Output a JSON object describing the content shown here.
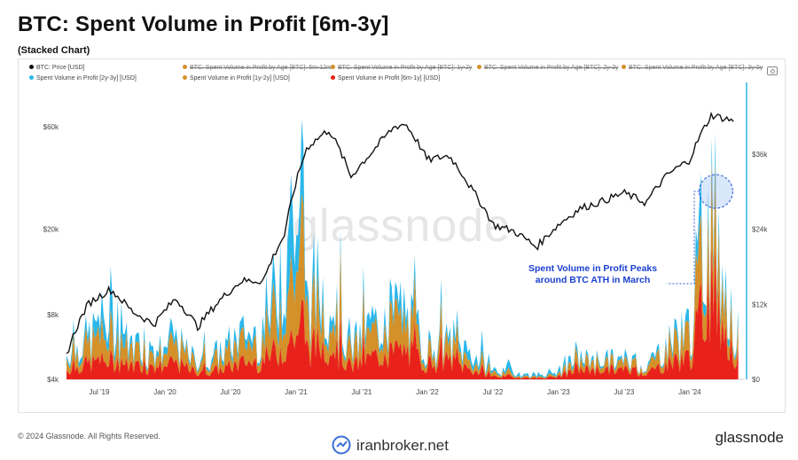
{
  "header": {
    "title": "BTC: Spent Volume in Profit [6m-3y]",
    "subtitle": "(Stacked Chart)"
  },
  "legend": {
    "items": [
      {
        "label": "BTC: Price [USD]",
        "color": "#111111",
        "struck": false
      },
      {
        "label": "BTC: Spent Volume in Profit by Age [BTC]: 6m-12m",
        "color": "#d4912a",
        "struck": true
      },
      {
        "label": "BTC: Spent Volume in Profit by Age [BTC]: 1y-2y",
        "color": "#d4912a",
        "struck": true
      },
      {
        "label": "BTC: Spent Volume in Profit by Age [BTC]: 2y-3y",
        "color": "#d4912a",
        "struck": true
      },
      {
        "label": "BTC: Spent Volume in Profit by Age [BTC]: 3y-5y",
        "color": "#d4912a",
        "struck": true
      },
      {
        "label": "Spent Volume in Profit [2y-3y] [USD]",
        "color": "#2ab7ea",
        "struck": false
      },
      {
        "label": "Spent Volume in Profit [1y-2y] [USD]",
        "color": "#d4912a",
        "struck": false
      },
      {
        "label": "Spent Volume in Profit [6m-1y] [USD]",
        "color": "#e8221b",
        "struck": false
      }
    ],
    "camera_icon": "camera-icon"
  },
  "watermark": "glassnode",
  "annotation": {
    "line1": "Spent Volume in Profit Peaks",
    "line2": "around BTC ATH in March"
  },
  "footer": {
    "copyright": "© 2024 Glassnode. All Rights Reserved.",
    "source": "iranbroker.net",
    "brand": "glassnode"
  },
  "colors": {
    "price": "#111111",
    "usd_2y3y": "#2ab7ea",
    "usd_1y2y": "#d4912a",
    "usd_6m1y": "#e8221b",
    "annotation": "#1a3fd0"
  },
  "chart_data": {
    "type": "area",
    "title": "BTC: Spent Volume in Profit [6m-3y]",
    "subtitle": "(Stacked Chart)",
    "x_ticks": [
      "Jul '19",
      "Jan '20",
      "Jul '20",
      "Jan '21",
      "Jul '21",
      "Jan '22",
      "Jul '22",
      "Jan '23",
      "Jul '23",
      "Jan '24"
    ],
    "y_left": {
      "scale": "log",
      "ticks": [
        "$4k",
        "$8k",
        "$20k",
        "$60k"
      ],
      "label": ""
    },
    "y_right": {
      "scale": "linear",
      "ticks": [
        "$0",
        "$12k",
        "$24k",
        "$36k"
      ],
      "label": ""
    },
    "x": [
      "2019-04",
      "2019-06",
      "2019-08",
      "2019-10",
      "2019-12",
      "2020-02",
      "2020-04",
      "2020-06",
      "2020-08",
      "2020-10",
      "2020-12",
      "2021-01",
      "2021-02",
      "2021-04",
      "2021-06",
      "2021-08",
      "2021-10",
      "2021-11",
      "2022-01",
      "2022-03",
      "2022-05",
      "2022-07",
      "2022-09",
      "2022-11",
      "2023-01",
      "2023-03",
      "2023-05",
      "2023-07",
      "2023-09",
      "2023-11",
      "2024-01",
      "2024-03",
      "2024-05"
    ],
    "series": [
      {
        "name": "BTC: Price [USD]",
        "axis": "left",
        "values": [
          5200,
          9000,
          10500,
          8300,
          7200,
          9500,
          7000,
          9300,
          11500,
          11500,
          19000,
          33000,
          48000,
          58000,
          35000,
          46000,
          60000,
          62000,
          42000,
          44000,
          31000,
          21000,
          19500,
          16500,
          21000,
          25000,
          27000,
          29500,
          26500,
          36000,
          42000,
          68000,
          64000
        ]
      },
      {
        "name": "Spent Volume in Profit [6m-1y] [USD]",
        "axis": "right",
        "values": [
          1500,
          2500,
          3000,
          2000,
          1800,
          2500,
          1000,
          1500,
          2500,
          3000,
          5500,
          7500,
          5000,
          6000,
          2000,
          3500,
          4000,
          4500,
          2500,
          3000,
          1500,
          500,
          300,
          200,
          400,
          1500,
          1500,
          1500,
          1000,
          2500,
          3500,
          16000,
          3000
        ]
      },
      {
        "name": "Spent Volume in Profit [1y-2y] [USD]",
        "axis": "right",
        "values": [
          1800,
          2800,
          4000,
          2200,
          1600,
          2600,
          1200,
          1800,
          3000,
          3200,
          8500,
          11000,
          5500,
          6000,
          2200,
          3500,
          4500,
          4000,
          1800,
          2200,
          1200,
          600,
          300,
          200,
          300,
          1200,
          1200,
          1000,
          800,
          2500,
          3500,
          10000,
          2500
        ]
      },
      {
        "name": "Spent Volume in Profit [2y-3y] [USD]",
        "axis": "right",
        "values": [
          800,
          1500,
          3000,
          1200,
          700,
          1000,
          500,
          900,
          1500,
          1500,
          7000,
          8500,
          2500,
          2500,
          1000,
          1500,
          2000,
          2000,
          800,
          900,
          1200,
          500,
          400,
          300,
          400,
          600,
          500,
          500,
          300,
          800,
          1200,
          4000,
          900
        ]
      }
    ]
  }
}
